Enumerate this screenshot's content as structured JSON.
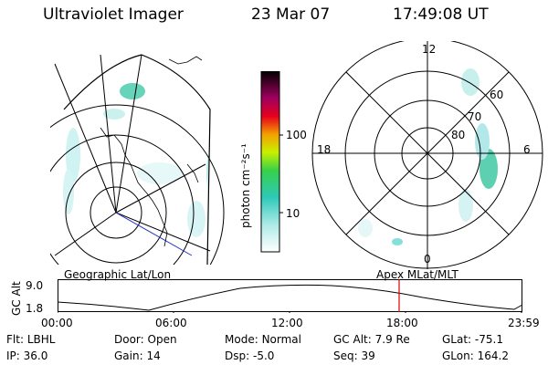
{
  "header": {
    "instrument": "Ultraviolet Imager",
    "date": "23 Mar 07",
    "time": "17:49:08 UT"
  },
  "colorbar": {
    "label": "photon cm⁻²s⁻¹",
    "ticks": [
      "100",
      "10"
    ]
  },
  "polar": {
    "lat_labels": [
      "60",
      "70",
      "80"
    ],
    "mlt_labels": [
      "12",
      "18",
      "6",
      "0"
    ]
  },
  "panel_labels": {
    "left": "Geographic Lat/Lon",
    "right": "Apex MLat/MLT"
  },
  "timeline": {
    "ylabel": "GC Alt",
    "y_ticks": [
      "9.0",
      "1.8"
    ],
    "x_ticks": [
      "00:00",
      "06:00",
      "12:00",
      "18:00",
      "23:59"
    ],
    "current_time_marker": "17:49",
    "marker_color": "#e00000"
  },
  "info": {
    "row1": [
      {
        "label": "Flt:",
        "value": "LBHL"
      },
      {
        "label": "Door:",
        "value": "Open"
      },
      {
        "label": "Mode:",
        "value": "Normal"
      },
      {
        "label": "GC Alt:",
        "value": "7.9 Re"
      },
      {
        "label": "GLat:",
        "value": "-75.1"
      }
    ],
    "row2": [
      {
        "label": "IP:",
        "value": "36.0"
      },
      {
        "label": "Gain:",
        "value": "14"
      },
      {
        "label": "Dsp:",
        "value": "-5.0"
      },
      {
        "label": "Seq:",
        "value": "39"
      },
      {
        "label": "GLon:",
        "value": "164.2"
      }
    ]
  }
}
